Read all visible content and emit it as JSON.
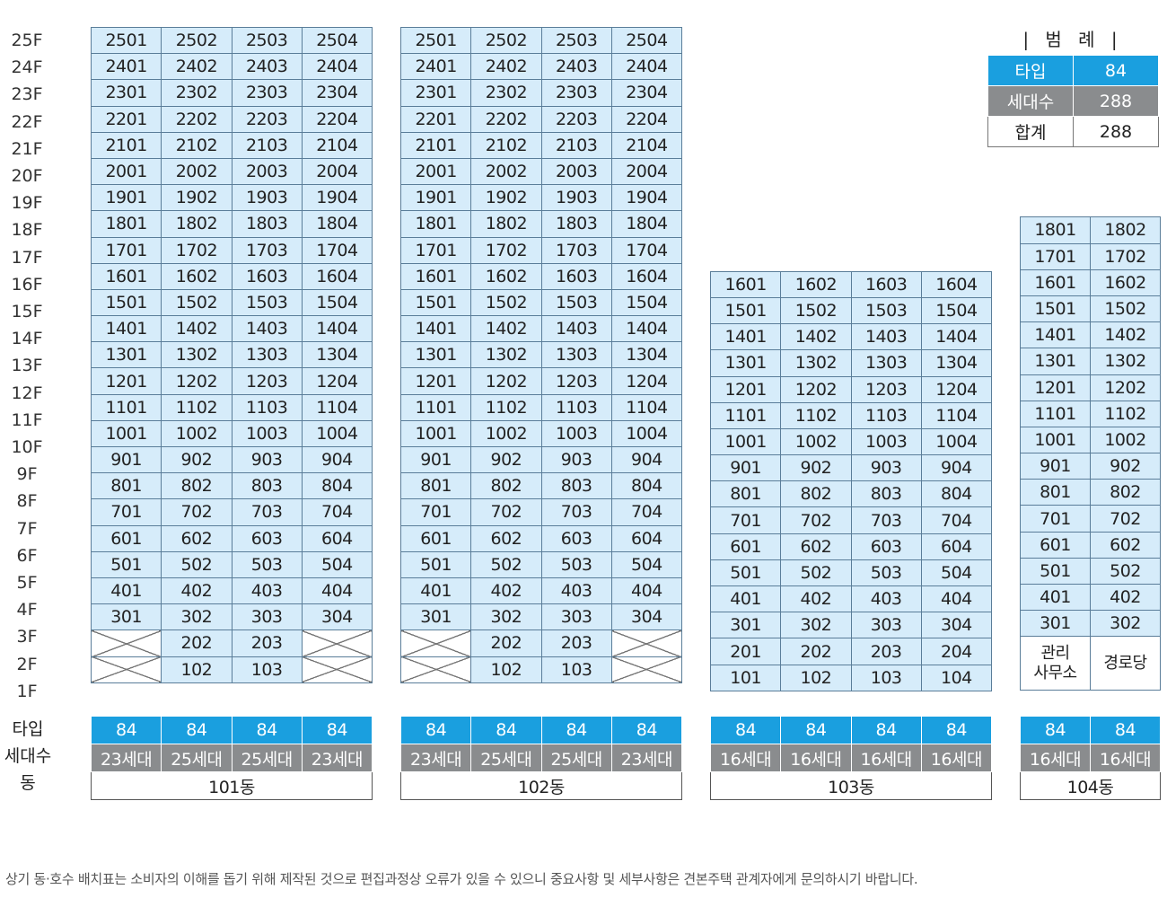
{
  "floors": [
    "25F",
    "24F",
    "23F",
    "22F",
    "21F",
    "20F",
    "19F",
    "18F",
    "17F",
    "16F",
    "15F",
    "14F",
    "13F",
    "12F",
    "11F",
    "10F",
    "9F",
    "8F",
    "7F",
    "6F",
    "5F",
    "4F",
    "3F",
    "2F",
    "1F"
  ],
  "row_labels": {
    "type": "타입",
    "count": "세대수",
    "dong": "동"
  },
  "legend": {
    "title": "| 범 례 |",
    "rows": [
      {
        "label": "타입",
        "value": "84"
      },
      {
        "label": "세대수",
        "value": "288"
      },
      {
        "label": "합계",
        "value": "288"
      }
    ]
  },
  "buildings": [
    {
      "name": "101동",
      "top_floor": 25,
      "empty_cells": [
        "2-1",
        "2-4",
        "1-1",
        "1-4"
      ],
      "facilities": [],
      "types": [
        "84",
        "84",
        "84",
        "84"
      ],
      "counts": [
        "23세대",
        "25세대",
        "25세대",
        "23세대"
      ],
      "units": [
        "2501",
        "2502",
        "2503",
        "2504",
        "2401",
        "2402",
        "2403",
        "2404",
        "2301",
        "2302",
        "2303",
        "2304",
        "2201",
        "2202",
        "2203",
        "2204",
        "2101",
        "2102",
        "2103",
        "2104",
        "2001",
        "2002",
        "2003",
        "2004",
        "1901",
        "1902",
        "1903",
        "1904",
        "1801",
        "1802",
        "1803",
        "1804",
        "1701",
        "1702",
        "1703",
        "1704",
        "1601",
        "1602",
        "1603",
        "1604",
        "1501",
        "1502",
        "1503",
        "1504",
        "1401",
        "1402",
        "1403",
        "1404",
        "1301",
        "1302",
        "1303",
        "1304",
        "1201",
        "1202",
        "1203",
        "1204",
        "1101",
        "1102",
        "1103",
        "1104",
        "1001",
        "1002",
        "1003",
        "1004",
        "901",
        "902",
        "903",
        "904",
        "801",
        "802",
        "803",
        "804",
        "701",
        "702",
        "703",
        "704",
        "601",
        "602",
        "603",
        "604",
        "501",
        "502",
        "503",
        "504",
        "401",
        "402",
        "403",
        "404",
        "301",
        "302",
        "303",
        "304",
        "",
        "202",
        "203",
        "",
        "",
        "102",
        "103",
        ""
      ]
    },
    {
      "name": "102동",
      "top_floor": 25,
      "empty_cells": [
        "2-1",
        "2-4",
        "1-1",
        "1-4"
      ],
      "facilities": [],
      "types": [
        "84",
        "84",
        "84",
        "84"
      ],
      "counts": [
        "23세대",
        "25세대",
        "25세대",
        "23세대"
      ],
      "units": [
        "2501",
        "2502",
        "2503",
        "2504",
        "2401",
        "2402",
        "2403",
        "2404",
        "2301",
        "2302",
        "2303",
        "2304",
        "2201",
        "2202",
        "2203",
        "2204",
        "2101",
        "2102",
        "2103",
        "2104",
        "2001",
        "2002",
        "2003",
        "2004",
        "1901",
        "1902",
        "1903",
        "1904",
        "1801",
        "1802",
        "1803",
        "1804",
        "1701",
        "1702",
        "1703",
        "1704",
        "1601",
        "1602",
        "1603",
        "1604",
        "1501",
        "1502",
        "1503",
        "1504",
        "1401",
        "1402",
        "1403",
        "1404",
        "1301",
        "1302",
        "1303",
        "1304",
        "1201",
        "1202",
        "1203",
        "1204",
        "1101",
        "1102",
        "1103",
        "1104",
        "1001",
        "1002",
        "1003",
        "1004",
        "901",
        "902",
        "903",
        "904",
        "801",
        "802",
        "803",
        "804",
        "701",
        "702",
        "703",
        "704",
        "601",
        "602",
        "603",
        "604",
        "501",
        "502",
        "503",
        "504",
        "401",
        "402",
        "403",
        "404",
        "301",
        "302",
        "303",
        "304",
        "",
        "202",
        "203",
        "",
        "",
        "102",
        "103",
        ""
      ]
    },
    {
      "name": "103동",
      "top_floor": 16,
      "empty_cells": [],
      "facilities": [],
      "types": [
        "84",
        "84",
        "84",
        "84"
      ],
      "counts": [
        "16세대",
        "16세대",
        "16세대",
        "16세대"
      ],
      "units": [
        "1601",
        "1602",
        "1603",
        "1604",
        "1501",
        "1502",
        "1503",
        "1504",
        "1401",
        "1402",
        "1403",
        "1404",
        "1301",
        "1302",
        "1303",
        "1304",
        "1201",
        "1202",
        "1203",
        "1204",
        "1101",
        "1102",
        "1103",
        "1104",
        "1001",
        "1002",
        "1003",
        "1004",
        "901",
        "902",
        "903",
        "904",
        "801",
        "802",
        "803",
        "804",
        "701",
        "702",
        "703",
        "704",
        "601",
        "602",
        "603",
        "604",
        "501",
        "502",
        "503",
        "504",
        "401",
        "402",
        "403",
        "404",
        "301",
        "302",
        "303",
        "304",
        "201",
        "202",
        "203",
        "204",
        "101",
        "102",
        "103",
        "104"
      ]
    },
    {
      "name": "104동",
      "top_floor": 18,
      "empty_cells": [],
      "facilities": [
        "관리\n사무소",
        "경로당"
      ],
      "types": [
        "84",
        "84"
      ],
      "counts": [
        "16세대",
        "16세대"
      ],
      "units": [
        "1801",
        "1802",
        "1701",
        "1702",
        "1601",
        "1602",
        "1501",
        "1502",
        "1401",
        "1402",
        "1301",
        "1302",
        "1201",
        "1202",
        "1101",
        "1102",
        "1001",
        "1002",
        "901",
        "902",
        "801",
        "802",
        "701",
        "702",
        "601",
        "602",
        "501",
        "502",
        "401",
        "402",
        "301",
        "302"
      ]
    }
  ],
  "footnote": "상기 동·호수 배치표는 소비자의 이해를 돕기 위해 제작된 것으로 편집과정상 오류가 있을 수 있으니 중요사항 및 세부사항은 견본주택 관계자에게 문의하시기 바랍니다."
}
